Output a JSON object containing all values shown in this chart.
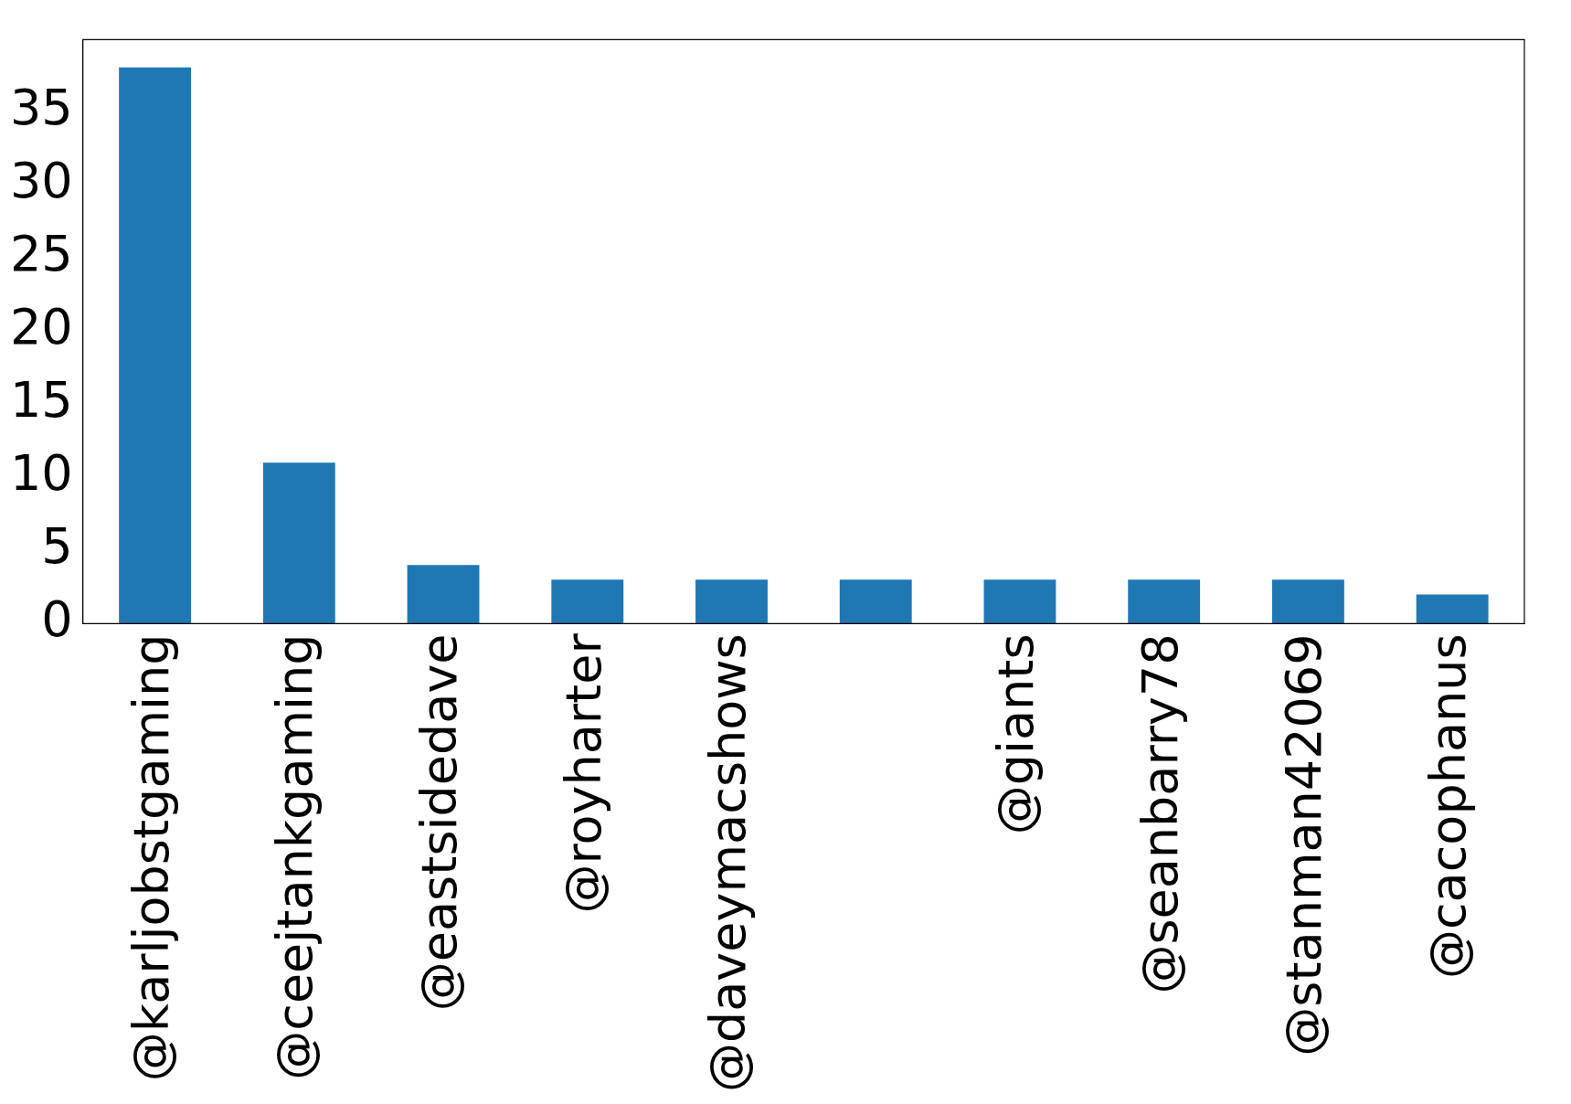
{
  "chart_data": {
    "type": "bar",
    "categories": [
      "@karljobstgaming",
      "@ceejtankgaming",
      "@eastsidedave",
      "@royharter",
      "@daveymacshows",
      null,
      "@giants",
      "@seanbarry78",
      "@stanman42069",
      "@cacophanus"
    ],
    "values": [
      38,
      11,
      4,
      3,
      3,
      3,
      3,
      3,
      3,
      2
    ],
    "color": "#1f77b4",
    "ylim": [
      0,
      39.9
    ],
    "yticks": [
      0,
      5,
      10,
      15,
      20,
      25,
      30,
      35
    ],
    "grid": false,
    "legend": false
  }
}
